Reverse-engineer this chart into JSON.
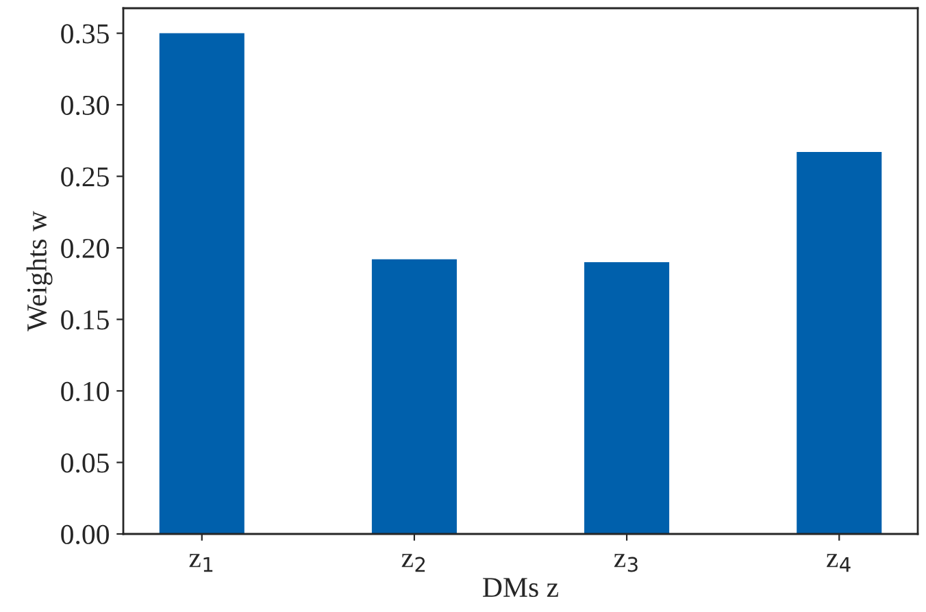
{
  "chart_data": {
    "type": "bar",
    "xlabel": "DMs z",
    "ylabel": "Weights w",
    "categories": [
      "z$_{1}$",
      "z$_{2}$",
      "z$_{3}$",
      "z$_{4}$"
    ],
    "values": [
      0.35,
      0.192,
      0.19,
      0.267
    ],
    "color": "#0060ac",
    "ylim": [
      0,
      0.3675
    ],
    "yticks": [
      {
        "value": 0,
        "label": "0.00"
      },
      {
        "value": 0.05,
        "label": "0.05"
      },
      {
        "value": 0.1,
        "label": "0.10"
      },
      {
        "value": 0.15,
        "label": "0.15"
      },
      {
        "value": 0.2,
        "label": "0.20"
      },
      {
        "value": 0.25,
        "label": "0.25"
      },
      {
        "value": 0.3,
        "label": "0.30"
      },
      {
        "value": 0.35,
        "label": "0.35"
      }
    ],
    "grid": false,
    "legend": false
  }
}
